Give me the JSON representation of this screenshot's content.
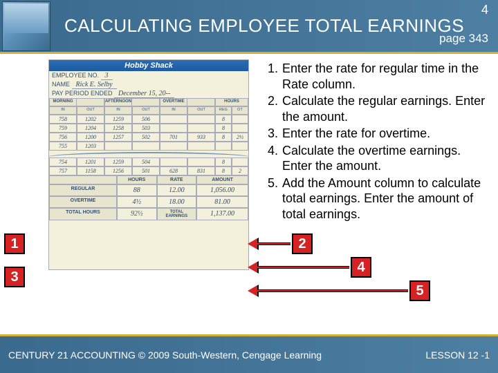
{
  "header": {
    "title": "CALCULATING EMPLOYEE TOTAL EARNINGS",
    "slide_number": "4",
    "page_reference": "page 343"
  },
  "timesheet": {
    "company": "Hobby Shack",
    "employee_no_label": "EMPLOYEE NO.",
    "employee_no": "3",
    "name_label": "NAME",
    "name": "Rick E. Selby",
    "period_label": "PAY PERIOD ENDED",
    "period": "December 15, 20--",
    "col_groups": [
      "MORNING",
      "AFTERNOON",
      "OVERTIME",
      "HOURS"
    ],
    "sub_cols": [
      "IN",
      "OUT",
      "IN",
      "OUT",
      "IN",
      "OUT",
      "REG",
      "OT"
    ],
    "rows_top": [
      [
        "758",
        "1202",
        "1259",
        "506",
        "",
        "",
        "8",
        ""
      ],
      [
        "759",
        "1204",
        "1258",
        "503",
        "",
        "",
        "8",
        ""
      ],
      [
        "756",
        "1200",
        "1257",
        "502",
        "701",
        "933",
        "8",
        "2½"
      ],
      [
        "755",
        "1203",
        "",
        "",
        "",
        "",
        "",
        ""
      ]
    ],
    "rows_bottom": [
      [
        "754",
        "1201",
        "1259",
        "504",
        "",
        "",
        "8",
        ""
      ],
      [
        "757",
        "1158",
        "1256",
        "501",
        "628",
        "831",
        "8",
        "2"
      ]
    ],
    "totals_headers": [
      "",
      "HOURS",
      "RATE",
      "AMOUNT"
    ],
    "totals_rows": [
      {
        "label": "REGULAR",
        "hours": "88",
        "rate": "12.00",
        "amount": "1,056.00"
      },
      {
        "label": "OVERTIME",
        "hours": "4½",
        "rate": "18.00",
        "amount": "81.00"
      },
      {
        "label": "TOTAL HOURS",
        "hours": "92½",
        "rate_label": "TOTAL EARNINGS",
        "amount": "1,137.00"
      }
    ]
  },
  "instructions": [
    "Enter the rate for regular time in the Rate column.",
    "Calculate the regular earnings. Enter the amount.",
    "Enter the rate for overtime.",
    "Calculate the overtime earnings. Enter the amount.",
    "Add the Amount column to calculate total earnings. Enter the amount of total earnings."
  ],
  "callouts": {
    "c1": "1",
    "c2": "2",
    "c3": "3",
    "c4": "4",
    "c5": "5"
  },
  "footer": {
    "left": "CENTURY 21 ACCOUNTING © 2009 South-Western, Cengage Learning",
    "right": "LESSON  12 -1"
  },
  "colors": {
    "header_bg_start": "#3a6a8e",
    "header_bg_end": "#4d7fa3",
    "gold_bar": "#d4af37",
    "callout_red": "#d62222",
    "timesheet_bg": "#f3f0dc",
    "hobby_blue": "#1e5aa0"
  }
}
